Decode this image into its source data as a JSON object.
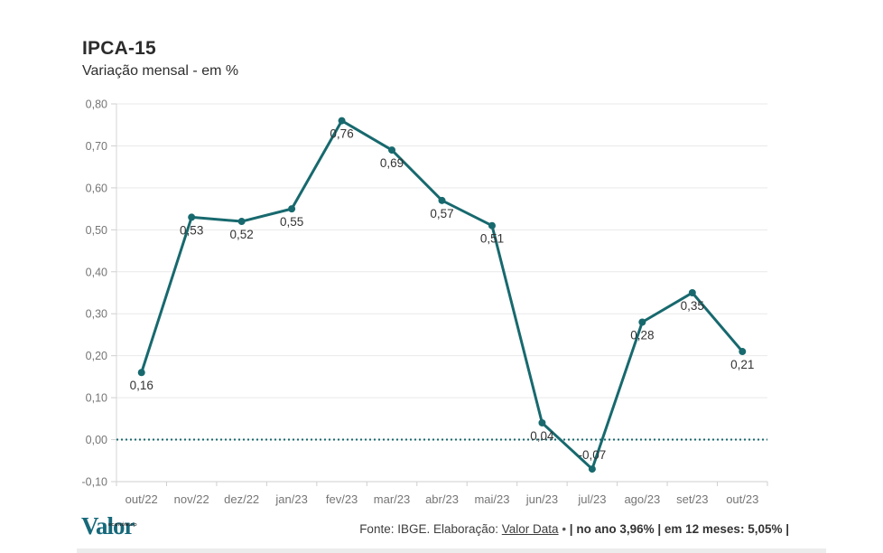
{
  "header": {
    "title": "IPCA-15",
    "subtitle": "Variação mensal - em %"
  },
  "chart_data": {
    "type": "line",
    "title": "IPCA-15",
    "subtitle": "Variação mensal - em %",
    "unit": "%",
    "categories": [
      "out/22",
      "nov/22",
      "dez/22",
      "jan/23",
      "fev/23",
      "mar/23",
      "abr/23",
      "mai/23",
      "jun/23",
      "jul/23",
      "ago/23",
      "set/23",
      "out/23"
    ],
    "values": [
      0.16,
      0.53,
      0.52,
      0.55,
      0.76,
      0.69,
      0.57,
      0.51,
      0.04,
      -0.07,
      0.28,
      0.35,
      0.21
    ],
    "value_labels": [
      "0,16",
      "0,53",
      "0,52",
      "0,55",
      "0,76",
      "0,69",
      "0,57",
      "0,51",
      "0,04",
      "-0,07",
      "0,28",
      "0,35",
      "0,21"
    ],
    "ylim": [
      -0.1,
      0.8
    ],
    "yticks": [
      {
        "v": 0.8,
        "label": "0,80"
      },
      {
        "v": 0.7,
        "label": "0,70"
      },
      {
        "v": 0.6,
        "label": "0,60"
      },
      {
        "v": 0.5,
        "label": "0,50"
      },
      {
        "v": 0.4,
        "label": "0,40"
      },
      {
        "v": 0.3,
        "label": "0,30"
      },
      {
        "v": 0.2,
        "label": "0,20"
      },
      {
        "v": 0.1,
        "label": "0,10"
      },
      {
        "v": 0.0,
        "label": "0,00"
      },
      {
        "v": -0.1,
        "label": "-0,10"
      }
    ],
    "grid": true,
    "legend": "none",
    "zero_line": "dotted"
  },
  "footer": {
    "logo_text": "Valor",
    "logo_sup": "ECONÔMICO",
    "source_prefix": "Fonte: IBGE. Elaboração: ",
    "source_link": "Valor Data",
    "bullet": " • ",
    "stats": "| no ano 3,96% | em 12 meses: 5,05% |"
  },
  "colors": {
    "line": "#17696e",
    "marker": "#17696e",
    "zero_line": "#17696e",
    "grid": "#e9e9e9",
    "axis": "#d6d6d6",
    "tick": "#cfcfcf",
    "tick_text": "#757575",
    "value_text": "#333333",
    "logo": "#16697a"
  }
}
